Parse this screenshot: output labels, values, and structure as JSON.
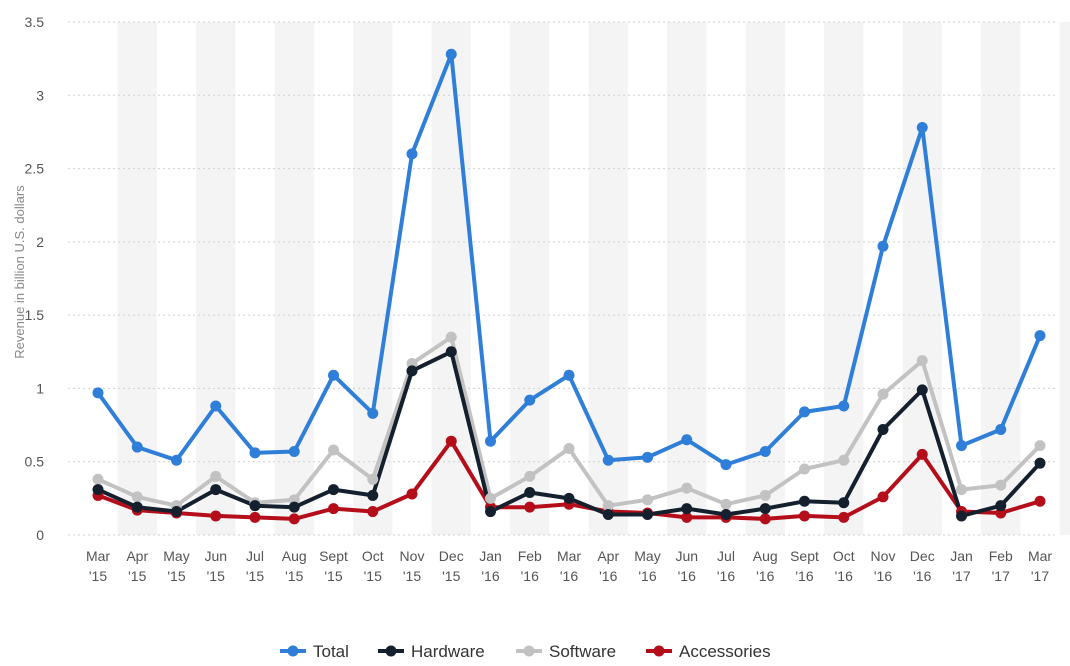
{
  "chart_data": {
    "type": "line",
    "ylabel": "Revenue in billion U.S. dollars",
    "ylim": [
      0,
      3.5
    ],
    "yticks": [
      "0",
      "0.5",
      "1",
      "1.5",
      "2",
      "2.5",
      "3",
      "3.5"
    ],
    "grid": true,
    "legend_position": "bottom",
    "categories": [
      {
        "month": "Mar",
        "year": "'15"
      },
      {
        "month": "Apr",
        "year": "'15"
      },
      {
        "month": "May",
        "year": "'15"
      },
      {
        "month": "Jun",
        "year": "'15"
      },
      {
        "month": "Jul",
        "year": "'15"
      },
      {
        "month": "Aug",
        "year": "'15"
      },
      {
        "month": "Sept",
        "year": "'15"
      },
      {
        "month": "Oct",
        "year": "'15"
      },
      {
        "month": "Nov",
        "year": "'15"
      },
      {
        "month": "Dec",
        "year": "'15"
      },
      {
        "month": "Jan",
        "year": "'16"
      },
      {
        "month": "Feb",
        "year": "'16"
      },
      {
        "month": "Mar",
        "year": "'16"
      },
      {
        "month": "Apr",
        "year": "'16"
      },
      {
        "month": "May",
        "year": "'16"
      },
      {
        "month": "Jun",
        "year": "'16"
      },
      {
        "month": "Jul",
        "year": "'16"
      },
      {
        "month": "Aug",
        "year": "'16"
      },
      {
        "month": "Sept",
        "year": "'16"
      },
      {
        "month": "Oct",
        "year": "'16"
      },
      {
        "month": "Nov",
        "year": "'16"
      },
      {
        "month": "Dec",
        "year": "'16"
      },
      {
        "month": "Jan",
        "year": "'17"
      },
      {
        "month": "Feb",
        "year": "'17"
      },
      {
        "month": "Mar",
        "year": "'17"
      }
    ],
    "series": [
      {
        "name": "Total",
        "color": "#2f7ed8",
        "values": [
          0.97,
          0.6,
          0.51,
          0.88,
          0.56,
          0.57,
          1.09,
          0.83,
          2.6,
          3.28,
          0.64,
          0.92,
          1.09,
          0.51,
          0.53,
          0.65,
          0.48,
          0.57,
          0.84,
          0.88,
          1.97,
          2.78,
          0.61,
          0.72,
          1.36
        ]
      },
      {
        "name": "Hardware",
        "color": "#14202e",
        "values": [
          0.31,
          0.19,
          0.16,
          0.31,
          0.2,
          0.19,
          0.31,
          0.27,
          1.12,
          1.25,
          0.16,
          0.29,
          0.25,
          0.14,
          0.14,
          0.18,
          0.14,
          0.18,
          0.23,
          0.22,
          0.72,
          0.99,
          0.13,
          0.2,
          0.49
        ]
      },
      {
        "name": "Software",
        "color": "#c2c2c2",
        "values": [
          0.38,
          0.26,
          0.2,
          0.4,
          0.22,
          0.24,
          0.58,
          0.38,
          1.17,
          1.35,
          0.25,
          0.4,
          0.59,
          0.2,
          0.24,
          0.32,
          0.21,
          0.27,
          0.45,
          0.51,
          0.96,
          1.19,
          0.31,
          0.34,
          0.61
        ]
      },
      {
        "name": "Accessories",
        "color": "#b50e1b",
        "values": [
          0.27,
          0.17,
          0.15,
          0.13,
          0.12,
          0.11,
          0.18,
          0.16,
          0.28,
          0.64,
          0.19,
          0.19,
          0.21,
          0.16,
          0.15,
          0.12,
          0.12,
          0.11,
          0.13,
          0.12,
          0.26,
          0.55,
          0.16,
          0.15,
          0.23
        ]
      }
    ]
  }
}
